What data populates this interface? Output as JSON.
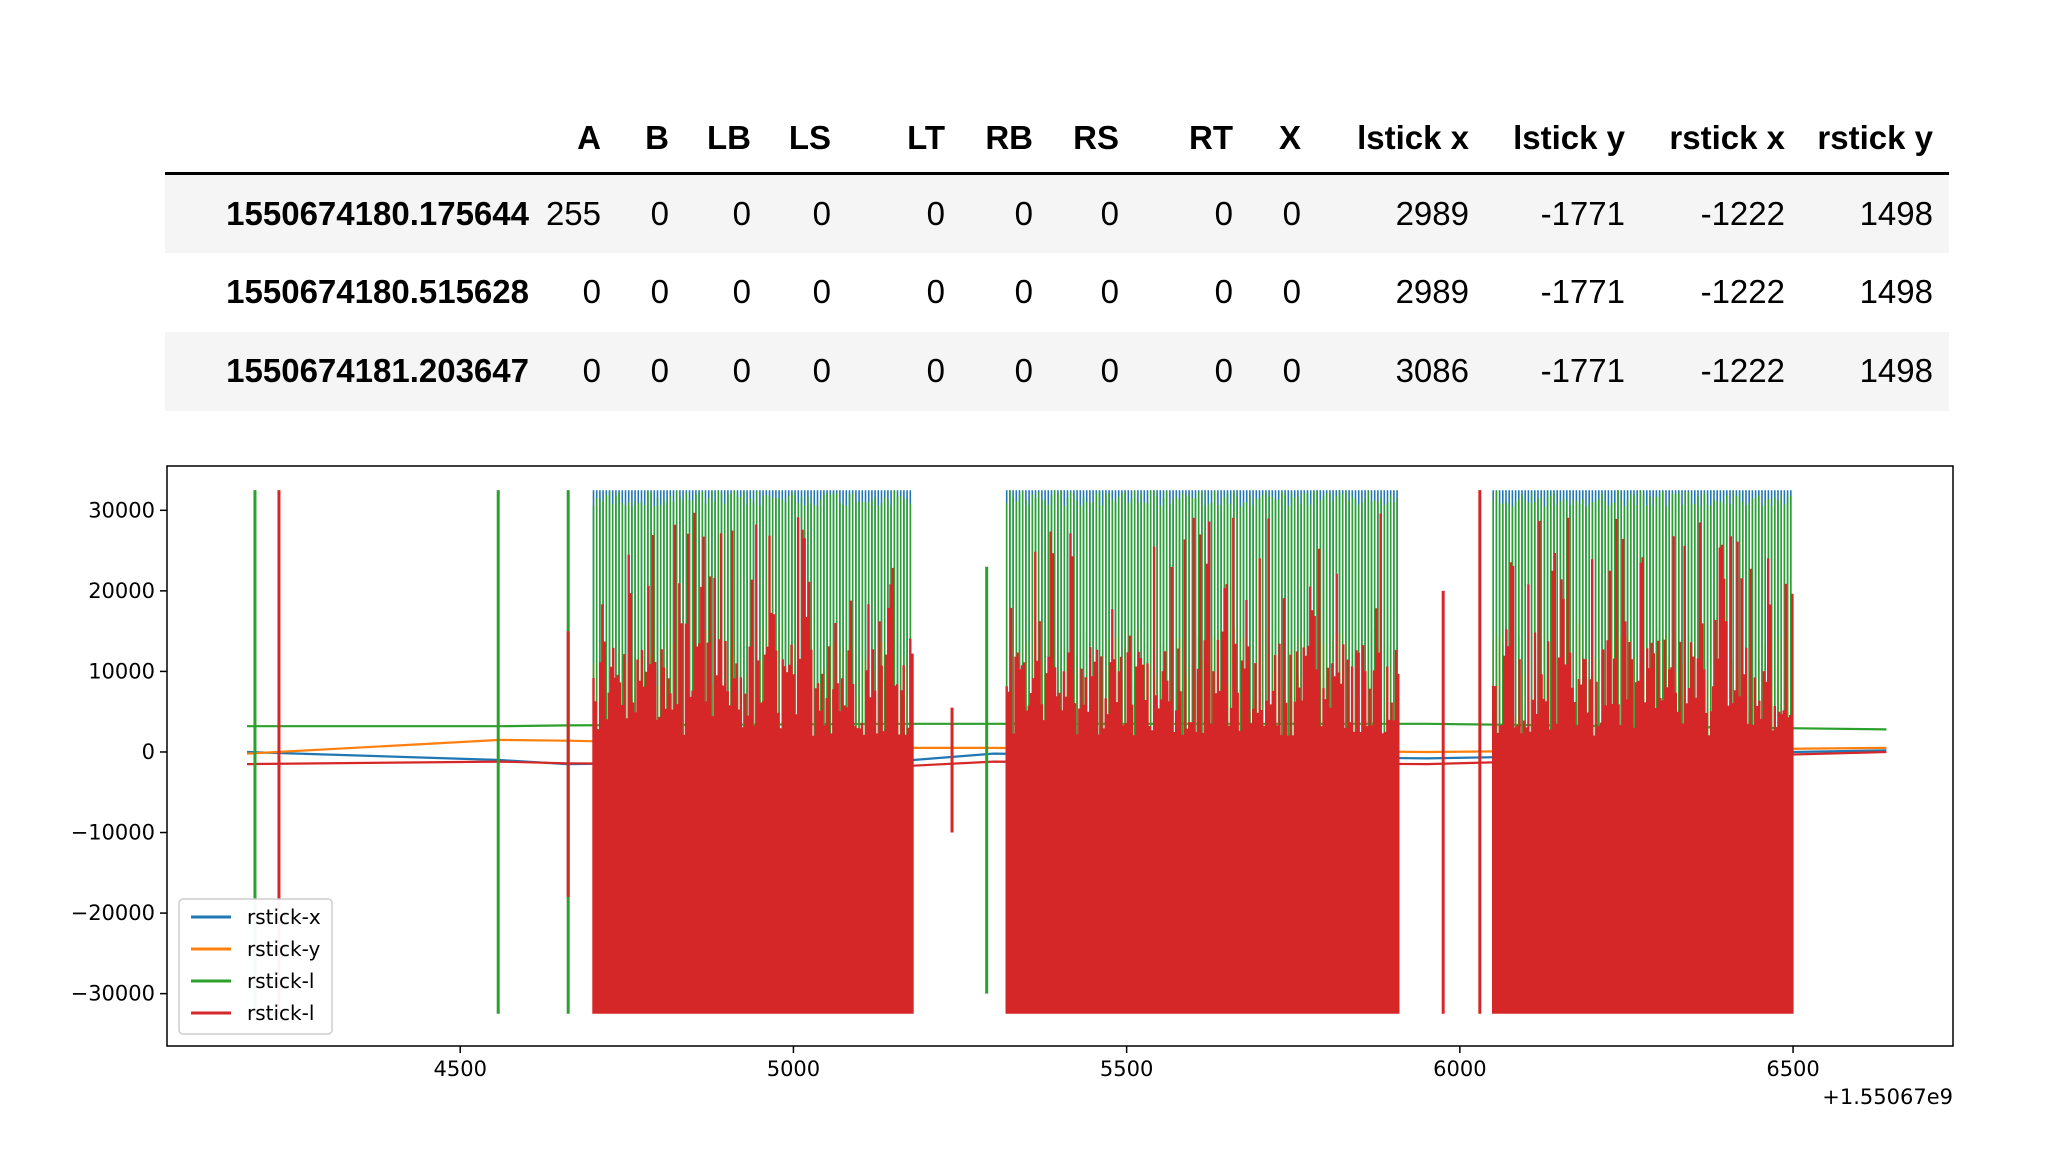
{
  "table": {
    "columns": [
      "A",
      "B",
      "LB",
      "LS",
      "LT",
      "RB",
      "RS",
      "RT",
      "X",
      "lstick x",
      "lstick y",
      "rstick x",
      "rstick y"
    ],
    "rows": [
      {
        "index": "1550674180.175644",
        "values": [
          "255",
          "0",
          "0",
          "0",
          "0",
          "0",
          "0",
          "0",
          "0",
          "2989",
          "-1771",
          "-1222",
          "1498"
        ]
      },
      {
        "index": "1550674180.515628",
        "values": [
          "0",
          "0",
          "0",
          "0",
          "0",
          "0",
          "0",
          "0",
          "0",
          "2989",
          "-1771",
          "-1222",
          "1498"
        ]
      },
      {
        "index": "1550674181.203647",
        "values": [
          "0",
          "0",
          "0",
          "0",
          "0",
          "0",
          "0",
          "0",
          "0",
          "3086",
          "-1771",
          "-1222",
          "1498"
        ]
      }
    ]
  },
  "chart_data": {
    "type": "line",
    "title": "",
    "xlabel": "",
    "ylabel": "",
    "x_offset_label": "+1.55067e9",
    "xlim": [
      4060,
      6740
    ],
    "ylim": [
      -36500,
      35500
    ],
    "xticks": [
      4500,
      5000,
      5500,
      6000,
      6500
    ],
    "yticks": [
      30000,
      20000,
      10000,
      0,
      -10000,
      -20000,
      -30000
    ],
    "ytick_labels": [
      "30000",
      "20000",
      "10000",
      "0",
      "−10000",
      "−20000",
      "−30000"
    ],
    "legend_position": "lower left",
    "grid": false,
    "series": [
      {
        "name": "rstick-x",
        "color": "#1f77b4",
        "baseline": [
          [
            4180,
            0
          ],
          [
            4560,
            -1000
          ],
          [
            4660,
            -1500
          ],
          [
            5180,
            -1000
          ],
          [
            5300,
            -200
          ],
          [
            5950,
            -800
          ],
          [
            6640,
            200
          ]
        ]
      },
      {
        "name": "rstick-y",
        "color": "#ff7f0e",
        "baseline": [
          [
            4180,
            -200
          ],
          [
            4560,
            1500
          ],
          [
            4660,
            1400
          ],
          [
            5180,
            500
          ],
          [
            5300,
            500
          ],
          [
            5950,
            0
          ],
          [
            6640,
            500
          ]
        ]
      },
      {
        "name": "rstick-l",
        "color": "#2ca02c",
        "baseline": [
          [
            4180,
            3200
          ],
          [
            4560,
            3200
          ],
          [
            4660,
            3300
          ],
          [
            5180,
            3500
          ],
          [
            5300,
            3500
          ],
          [
            5950,
            3500
          ],
          [
            6640,
            2800
          ]
        ]
      },
      {
        "name": "rstick-l",
        "color": "#d62728",
        "baseline": [
          [
            4180,
            -1500
          ],
          [
            4560,
            -1200
          ],
          [
            4660,
            -1400
          ],
          [
            5180,
            -1700
          ],
          [
            5300,
            -1200
          ],
          [
            5950,
            -1500
          ],
          [
            6640,
            0
          ]
        ]
      }
    ],
    "spikes": [
      {
        "x": 4192,
        "color": "#2ca02c",
        "min": -32500,
        "max": 32500
      },
      {
        "x": 4228,
        "color": "#d62728",
        "min": -32500,
        "max": 32500
      },
      {
        "x": 4557,
        "color": "#2ca02c",
        "min": -32500,
        "max": 32500
      },
      {
        "x": 4662,
        "color": "#2ca02c",
        "min": -32500,
        "max": 32500
      },
      {
        "x": 4662,
        "color": "#d62728",
        "min": -18000,
        "max": 15000
      },
      {
        "x": 5238,
        "color": "#d62728",
        "min": -10000,
        "max": 5500
      },
      {
        "x": 5290,
        "color": "#2ca02c",
        "min": -30000,
        "max": 23000
      },
      {
        "x": 5975,
        "color": "#d62728",
        "min": -32500,
        "max": 20000
      },
      {
        "x": 6030,
        "color": "#d62728",
        "min": -32500,
        "max": 32500
      }
    ],
    "dense_ranges": [
      [
        4700,
        5180
      ],
      [
        5320,
        5910
      ],
      [
        6050,
        6500
      ]
    ]
  }
}
